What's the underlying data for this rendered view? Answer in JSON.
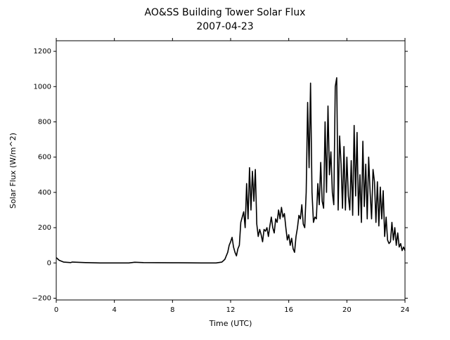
{
  "chart_data": {
    "type": "line",
    "title": "AO&SS Building Tower Solar Flux",
    "subtitle": "2007-04-23",
    "xlabel": "Time (UTC)",
    "ylabel": "Solar Flux (W/m^2)",
    "xlim": [
      0,
      24
    ],
    "xticks": [
      0,
      4,
      8,
      12,
      16,
      20,
      24
    ],
    "ylim": [
      -210,
      1260
    ],
    "yticks": [
      {
        "value": -200,
        "label": "−200"
      },
      0,
      200,
      400,
      600,
      800,
      1000,
      1200
    ],
    "series": [
      {
        "color": "#000000",
        "x": [
          0,
          0.2,
          0.5,
          1,
          1.1,
          2,
          3,
          4,
          5,
          5.4,
          6,
          8,
          10,
          11,
          11.4,
          11.6,
          11.8,
          11.9,
          12.0,
          12.1,
          12.2,
          12.3,
          12.4,
          12.5,
          12.6,
          12.7,
          12.8,
          12.9,
          13.0,
          13.1,
          13.2,
          13.3,
          13.4,
          13.5,
          13.6,
          13.7,
          13.8,
          13.9,
          14.0,
          14.1,
          14.2,
          14.3,
          14.4,
          14.5,
          14.6,
          14.7,
          14.8,
          14.9,
          15.0,
          15.1,
          15.2,
          15.3,
          15.4,
          15.5,
          15.6,
          15.7,
          15.8,
          15.9,
          16.0,
          16.1,
          16.2,
          16.3,
          16.4,
          16.5,
          16.6,
          16.7,
          16.8,
          16.9,
          17.0,
          17.1,
          17.2,
          17.3,
          17.4,
          17.5,
          17.6,
          17.7,
          17.8,
          17.9,
          18.0,
          18.1,
          18.2,
          18.3,
          18.4,
          18.5,
          18.6,
          18.7,
          18.8,
          18.9,
          19.0,
          19.1,
          19.2,
          19.3,
          19.4,
          19.5,
          19.6,
          19.7,
          19.8,
          19.9,
          20.0,
          20.1,
          20.2,
          20.3,
          20.4,
          20.5,
          20.6,
          20.7,
          20.8,
          20.9,
          21.0,
          21.1,
          21.2,
          21.3,
          21.4,
          21.5,
          21.6,
          21.7,
          21.8,
          21.9,
          22.0,
          22.1,
          22.2,
          22.3,
          22.4,
          22.5,
          22.6,
          22.7,
          22.8,
          22.9,
          23.0,
          23.1,
          23.2,
          23.3,
          23.4,
          23.5,
          23.6,
          23.7,
          23.8,
          23.9,
          24.0
        ],
        "values": [
          30,
          15,
          5,
          2,
          5,
          2,
          0,
          0,
          0,
          4,
          2,
          1,
          0,
          0,
          5,
          20,
          60,
          100,
          120,
          145,
          90,
          60,
          40,
          80,
          100,
          230,
          260,
          290,
          200,
          450,
          250,
          540,
          300,
          520,
          350,
          530,
          220,
          150,
          190,
          160,
          120,
          190,
          180,
          200,
          150,
          210,
          260,
          200,
          170,
          250,
          230,
          300,
          250,
          315,
          260,
          280,
          200,
          130,
          160,
          100,
          140,
          80,
          60,
          150,
          200,
          270,
          250,
          330,
          220,
          200,
          400,
          910,
          540,
          1020,
          400,
          230,
          260,
          250,
          450,
          330,
          570,
          350,
          310,
          800,
          400,
          890,
          500,
          630,
          400,
          330,
          1000,
          1050,
          300,
          720,
          560,
          310,
          660,
          300,
          600,
          380,
          300,
          580,
          270,
          780,
          380,
          740,
          270,
          500,
          230,
          690,
          320,
          560,
          250,
          600,
          400,
          250,
          530,
          460,
          230,
          460,
          210,
          430,
          250,
          410,
          150,
          260,
          130,
          110,
          120,
          230,
          130,
          200,
          100,
          170,
          90,
          110,
          70,
          90,
          70
        ]
      }
    ]
  }
}
